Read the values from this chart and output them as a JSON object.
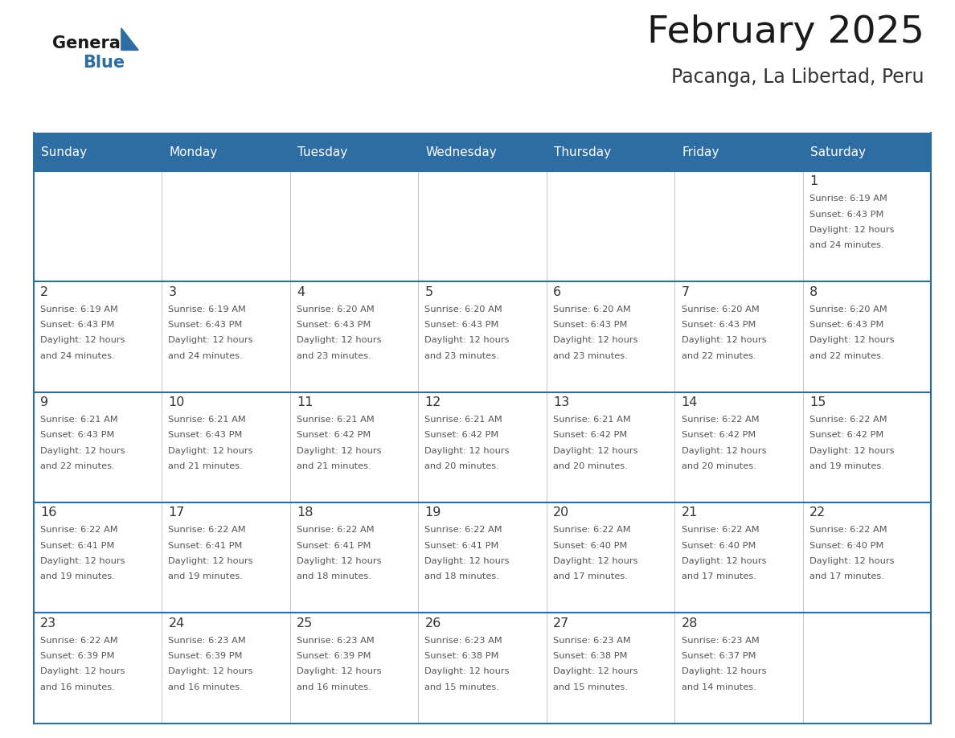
{
  "title": "February 2025",
  "subtitle": "Pacanga, La Libertad, Peru",
  "header_color": "#2E6DA4",
  "header_text_color": "#FFFFFF",
  "days_of_week": [
    "Sunday",
    "Monday",
    "Tuesday",
    "Wednesday",
    "Thursday",
    "Friday",
    "Saturday"
  ],
  "border_color": "#2E6DA4",
  "cell_border_color": "#2E6DA4",
  "text_color": "#555555",
  "day_num_color": "#333333",
  "calendar_data": [
    [
      null,
      null,
      null,
      null,
      null,
      null,
      {
        "day": "1",
        "sunrise": "6:19 AM",
        "sunset": "6:43 PM",
        "daylight_h": "12 hours",
        "daylight_m": "24 minutes."
      }
    ],
    [
      {
        "day": "2",
        "sunrise": "6:19 AM",
        "sunset": "6:43 PM",
        "daylight_h": "12 hours",
        "daylight_m": "24 minutes."
      },
      {
        "day": "3",
        "sunrise": "6:19 AM",
        "sunset": "6:43 PM",
        "daylight_h": "12 hours",
        "daylight_m": "24 minutes."
      },
      {
        "day": "4",
        "sunrise": "6:20 AM",
        "sunset": "6:43 PM",
        "daylight_h": "12 hours",
        "daylight_m": "23 minutes."
      },
      {
        "day": "5",
        "sunrise": "6:20 AM",
        "sunset": "6:43 PM",
        "daylight_h": "12 hours",
        "daylight_m": "23 minutes."
      },
      {
        "day": "6",
        "sunrise": "6:20 AM",
        "sunset": "6:43 PM",
        "daylight_h": "12 hours",
        "daylight_m": "23 minutes."
      },
      {
        "day": "7",
        "sunrise": "6:20 AM",
        "sunset": "6:43 PM",
        "daylight_h": "12 hours",
        "daylight_m": "22 minutes."
      },
      {
        "day": "8",
        "sunrise": "6:20 AM",
        "sunset": "6:43 PM",
        "daylight_h": "12 hours",
        "daylight_m": "22 minutes."
      }
    ],
    [
      {
        "day": "9",
        "sunrise": "6:21 AM",
        "sunset": "6:43 PM",
        "daylight_h": "12 hours",
        "daylight_m": "22 minutes."
      },
      {
        "day": "10",
        "sunrise": "6:21 AM",
        "sunset": "6:43 PM",
        "daylight_h": "12 hours",
        "daylight_m": "21 minutes."
      },
      {
        "day": "11",
        "sunrise": "6:21 AM",
        "sunset": "6:42 PM",
        "daylight_h": "12 hours",
        "daylight_m": "21 minutes."
      },
      {
        "day": "12",
        "sunrise": "6:21 AM",
        "sunset": "6:42 PM",
        "daylight_h": "12 hours",
        "daylight_m": "20 minutes."
      },
      {
        "day": "13",
        "sunrise": "6:21 AM",
        "sunset": "6:42 PM",
        "daylight_h": "12 hours",
        "daylight_m": "20 minutes."
      },
      {
        "day": "14",
        "sunrise": "6:22 AM",
        "sunset": "6:42 PM",
        "daylight_h": "12 hours",
        "daylight_m": "20 minutes."
      },
      {
        "day": "15",
        "sunrise": "6:22 AM",
        "sunset": "6:42 PM",
        "daylight_h": "12 hours",
        "daylight_m": "19 minutes."
      }
    ],
    [
      {
        "day": "16",
        "sunrise": "6:22 AM",
        "sunset": "6:41 PM",
        "daylight_h": "12 hours",
        "daylight_m": "19 minutes."
      },
      {
        "day": "17",
        "sunrise": "6:22 AM",
        "sunset": "6:41 PM",
        "daylight_h": "12 hours",
        "daylight_m": "19 minutes."
      },
      {
        "day": "18",
        "sunrise": "6:22 AM",
        "sunset": "6:41 PM",
        "daylight_h": "12 hours",
        "daylight_m": "18 minutes."
      },
      {
        "day": "19",
        "sunrise": "6:22 AM",
        "sunset": "6:41 PM",
        "daylight_h": "12 hours",
        "daylight_m": "18 minutes."
      },
      {
        "day": "20",
        "sunrise": "6:22 AM",
        "sunset": "6:40 PM",
        "daylight_h": "12 hours",
        "daylight_m": "17 minutes."
      },
      {
        "day": "21",
        "sunrise": "6:22 AM",
        "sunset": "6:40 PM",
        "daylight_h": "12 hours",
        "daylight_m": "17 minutes."
      },
      {
        "day": "22",
        "sunrise": "6:22 AM",
        "sunset": "6:40 PM",
        "daylight_h": "12 hours",
        "daylight_m": "17 minutes."
      }
    ],
    [
      {
        "day": "23",
        "sunrise": "6:22 AM",
        "sunset": "6:39 PM",
        "daylight_h": "12 hours",
        "daylight_m": "16 minutes."
      },
      {
        "day": "24",
        "sunrise": "6:23 AM",
        "sunset": "6:39 PM",
        "daylight_h": "12 hours",
        "daylight_m": "16 minutes."
      },
      {
        "day": "25",
        "sunrise": "6:23 AM",
        "sunset": "6:39 PM",
        "daylight_h": "12 hours",
        "daylight_m": "16 minutes."
      },
      {
        "day": "26",
        "sunrise": "6:23 AM",
        "sunset": "6:38 PM",
        "daylight_h": "12 hours",
        "daylight_m": "15 minutes."
      },
      {
        "day": "27",
        "sunrise": "6:23 AM",
        "sunset": "6:38 PM",
        "daylight_h": "12 hours",
        "daylight_m": "15 minutes."
      },
      {
        "day": "28",
        "sunrise": "6:23 AM",
        "sunset": "6:37 PM",
        "daylight_h": "12 hours",
        "daylight_m": "14 minutes."
      },
      null
    ]
  ],
  "logo_general_color": "#1a1a1a",
  "logo_blue_color": "#2E6DA4",
  "figsize": [
    11.88,
    9.18
  ],
  "dpi": 100
}
